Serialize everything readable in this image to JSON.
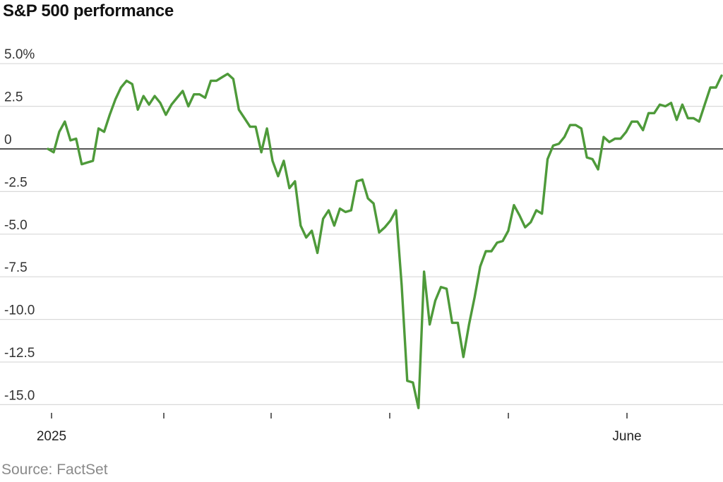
{
  "title": "S&P 500 performance",
  "source": "Source: FactSet",
  "colors": {
    "line": "#4e9a3a",
    "grid": "#d9d9d9",
    "zero": "#555555",
    "text": "#222222"
  },
  "chart_data": {
    "type": "line",
    "title": "S&P 500 performance",
    "xlabel": "",
    "ylabel": "",
    "ylim": [
      -15.9,
      5.0
    ],
    "yticks": [
      5.0,
      2.5,
      0,
      -2.5,
      -5.0,
      -7.5,
      -10.0,
      -12.5,
      -15.0
    ],
    "ytick_labels": [
      "5.0%",
      "2.5",
      "0",
      "-2.5",
      "-5.0",
      "-7.5",
      "-10.0",
      "-12.5",
      "-15.0"
    ],
    "x_tick_labels": [
      "2025",
      "",
      "",
      "",
      "",
      "June"
    ],
    "grid": true,
    "series": [
      {
        "name": "",
        "values": [
          0.0,
          -0.2,
          1.0,
          1.6,
          0.5,
          0.6,
          -0.9,
          -0.8,
          -0.7,
          1.2,
          1.0,
          2.0,
          2.9,
          3.6,
          4.0,
          3.8,
          2.3,
          3.1,
          2.6,
          3.1,
          2.7,
          2.0,
          2.6,
          3.0,
          3.4,
          2.5,
          3.2,
          3.2,
          3.0,
          4.0,
          4.0,
          4.2,
          4.4,
          4.1,
          2.3,
          1.8,
          1.3,
          1.3,
          -0.2,
          1.2,
          -0.7,
          -1.6,
          -0.7,
          -2.3,
          -1.9,
          -4.5,
          -5.2,
          -4.8,
          -6.1,
          -4.1,
          -3.6,
          -4.5,
          -3.5,
          -3.7,
          -3.6,
          -1.9,
          -1.8,
          -2.9,
          -3.2,
          -4.9,
          -4.6,
          -4.2,
          -3.6,
          -8.0,
          -13.6,
          -13.7,
          -15.2,
          -7.2,
          -10.3,
          -8.9,
          -8.1,
          -8.2,
          -10.2,
          -10.2,
          -12.2,
          -10.3,
          -8.7,
          -6.9,
          -6.0,
          -6.0,
          -5.5,
          -5.4,
          -4.8,
          -3.3,
          -3.9,
          -4.6,
          -4.3,
          -3.6,
          -3.8,
          -0.6,
          0.2,
          0.3,
          0.7,
          1.4,
          1.4,
          1.2,
          -0.5,
          -0.6,
          -1.2,
          0.7,
          0.4,
          0.6,
          0.6,
          1.0,
          1.6,
          1.6,
          1.1,
          2.1,
          2.1,
          2.6,
          2.5,
          2.7,
          1.7,
          2.6,
          1.8,
          1.8,
          1.6,
          2.6,
          3.6,
          3.6,
          4.3
        ]
      }
    ]
  }
}
